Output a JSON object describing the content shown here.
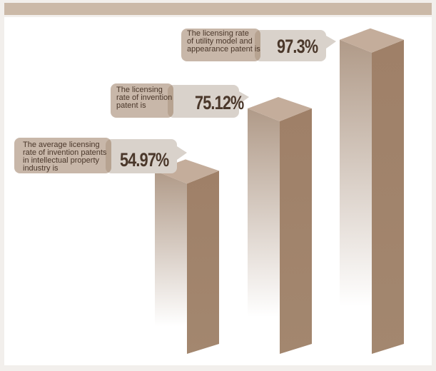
{
  "colors": {
    "bar_front_top": "#b09a88",
    "bar_front_bottom": "#ffffff",
    "bar_side": "#9f8068",
    "bar_top": "#c4ad9b",
    "callout_bg": "#9a7b63",
    "callout_shadow": "#d9d2cb",
    "text": "#4a372a",
    "header_bar": "#cbb9a8"
  },
  "chart_data": {
    "type": "bar",
    "style": "3d-columns",
    "unit": "%",
    "categories": [
      "The average licensing rate of invention patents in intellectual property industry is",
      "The licensing rate of invention patent is",
      "The licensing rate of utility model and appearance patent is"
    ],
    "values": [
      54.97,
      75.12,
      97.3
    ],
    "value_labels": [
      "54.97%",
      "75.12%",
      "97.3%"
    ],
    "callout_lines": [
      [
        "The average licensing",
        "rate of invention patents",
        "in intellectual property",
        "industry is"
      ],
      [
        "The licensing",
        "rate of invention",
        "patent is"
      ],
      [
        "The licensing rate",
        "of utility model and",
        "appearance patent is"
      ]
    ],
    "ylim": [
      0,
      100
    ],
    "axis_visible": false,
    "grid": false,
    "legend": "none"
  }
}
